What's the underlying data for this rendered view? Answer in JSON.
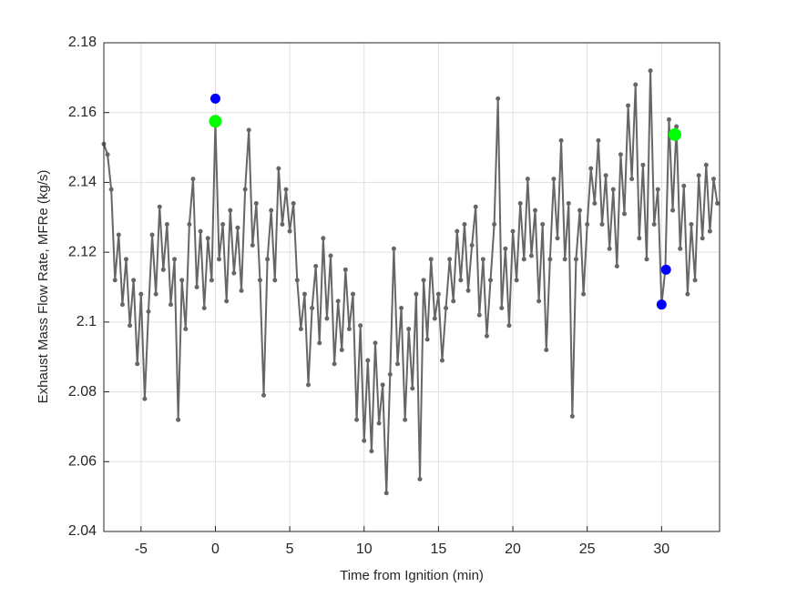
{
  "chart_data": {
    "type": "line",
    "xlabel": "Time from Ignition (min)",
    "ylabel": "Exhaust Mass Flow Rate, MFRe (kg/s)",
    "xlim": [
      -7.5,
      33.9
    ],
    "ylim": [
      2.04,
      2.18
    ],
    "xticks": [
      -5,
      0,
      5,
      10,
      15,
      20,
      25,
      30
    ],
    "yticks": [
      2.04,
      2.06,
      2.08,
      2.1,
      2.12,
      2.14,
      2.16,
      2.18
    ],
    "grid": true,
    "series": [
      {
        "color": "#666666",
        "style": "line-markers",
        "x": [
          -7.5,
          -7.25,
          -7,
          -6.75,
          -6.5,
          -6.25,
          -6,
          -5.75,
          -5.5,
          -5.25,
          -5,
          -4.75,
          -4.5,
          -4.25,
          -4,
          -3.75,
          -3.5,
          -3.25,
          -3,
          -2.75,
          -2.5,
          -2.25,
          -2,
          -1.75,
          -1.5,
          -1.25,
          -1,
          -0.75,
          -0.5,
          -0.25,
          0,
          0.25,
          0.5,
          0.75,
          1,
          1.25,
          1.5,
          1.75,
          2,
          2.25,
          2.5,
          2.75,
          3,
          3.25,
          3.5,
          3.75,
          4,
          4.25,
          4.5,
          4.75,
          5,
          5.25,
          5.5,
          5.75,
          6,
          6.25,
          6.5,
          6.75,
          7,
          7.25,
          7.5,
          7.75,
          8,
          8.25,
          8.5,
          8.75,
          9,
          9.25,
          9.5,
          9.75,
          10,
          10.25,
          10.5,
          10.75,
          11,
          11.25,
          11.5,
          11.75,
          12,
          12.25,
          12.5,
          12.75,
          13,
          13.25,
          13.5,
          13.75,
          14,
          14.25,
          14.5,
          14.75,
          15,
          15.25,
          15.5,
          15.75,
          16,
          16.25,
          16.5,
          16.75,
          17,
          17.25,
          17.5,
          17.75,
          18,
          18.25,
          18.5,
          18.75,
          19,
          19.25,
          19.5,
          19.75,
          20,
          20.25,
          20.5,
          20.75,
          21,
          21.25,
          21.5,
          21.75,
          22,
          22.25,
          22.5,
          22.75,
          23,
          23.25,
          23.5,
          23.75,
          24,
          24.25,
          24.5,
          24.75,
          25,
          25.25,
          25.5,
          25.75,
          26,
          26.25,
          26.5,
          26.75,
          27,
          27.25,
          27.5,
          27.75,
          28,
          28.25,
          28.5,
          28.75,
          29,
          29.25,
          29.5,
          29.75,
          30,
          30.25,
          30.5,
          30.75,
          31,
          31.25,
          31.5,
          31.75,
          32,
          32.25,
          32.5,
          32.75,
          33,
          33.25,
          33.5,
          33.75
        ],
        "values": [
          2.151,
          2.148,
          2.138,
          2.112,
          2.125,
          2.105,
          2.118,
          2.099,
          2.112,
          2.088,
          2.108,
          2.078,
          2.103,
          2.125,
          2.108,
          2.133,
          2.115,
          2.128,
          2.105,
          2.118,
          2.072,
          2.112,
          2.098,
          2.128,
          2.141,
          2.11,
          2.126,
          2.104,
          2.124,
          2.112,
          2.1575,
          2.118,
          2.128,
          2.106,
          2.132,
          2.114,
          2.127,
          2.109,
          2.138,
          2.155,
          2.122,
          2.134,
          2.112,
          2.079,
          2.118,
          2.132,
          2.112,
          2.144,
          2.128,
          2.138,
          2.126,
          2.134,
          2.112,
          2.098,
          2.108,
          2.082,
          2.104,
          2.116,
          2.094,
          2.124,
          2.101,
          2.119,
          2.088,
          2.106,
          2.092,
          2.115,
          2.098,
          2.108,
          2.072,
          2.099,
          2.066,
          2.089,
          2.063,
          2.094,
          2.071,
          2.082,
          2.051,
          2.085,
          2.121,
          2.088,
          2.104,
          2.072,
          2.098,
          2.081,
          2.108,
          2.055,
          2.112,
          2.095,
          2.118,
          2.101,
          2.108,
          2.089,
          2.104,
          2.118,
          2.106,
          2.126,
          2.112,
          2.128,
          2.109,
          2.122,
          2.133,
          2.102,
          2.118,
          2.096,
          2.112,
          2.128,
          2.164,
          2.104,
          2.121,
          2.099,
          2.126,
          2.112,
          2.134,
          2.118,
          2.141,
          2.119,
          2.132,
          2.106,
          2.128,
          2.092,
          2.118,
          2.141,
          2.124,
          2.152,
          2.118,
          2.134,
          2.073,
          2.118,
          2.132,
          2.108,
          2.128,
          2.144,
          2.134,
          2.152,
          2.128,
          2.142,
          2.121,
          2.138,
          2.116,
          2.148,
          2.131,
          2.162,
          2.141,
          2.168,
          2.124,
          2.145,
          2.118,
          2.172,
          2.128,
          2.138,
          2.105,
          2.115,
          2.158,
          2.132,
          2.156,
          2.121,
          2.139,
          2.108,
          2.128,
          2.112,
          2.142,
          2.124,
          2.145,
          2.126,
          2.141,
          2.134
        ]
      },
      {
        "color": "#0000ff",
        "style": "markers",
        "x": [
          0,
          30,
          30.3
        ],
        "values": [
          2.164,
          2.105,
          2.115
        ]
      },
      {
        "color": "#00ff00",
        "style": "markers",
        "x": [
          0,
          30.9
        ],
        "values": [
          2.1575,
          2.1537
        ]
      }
    ]
  }
}
